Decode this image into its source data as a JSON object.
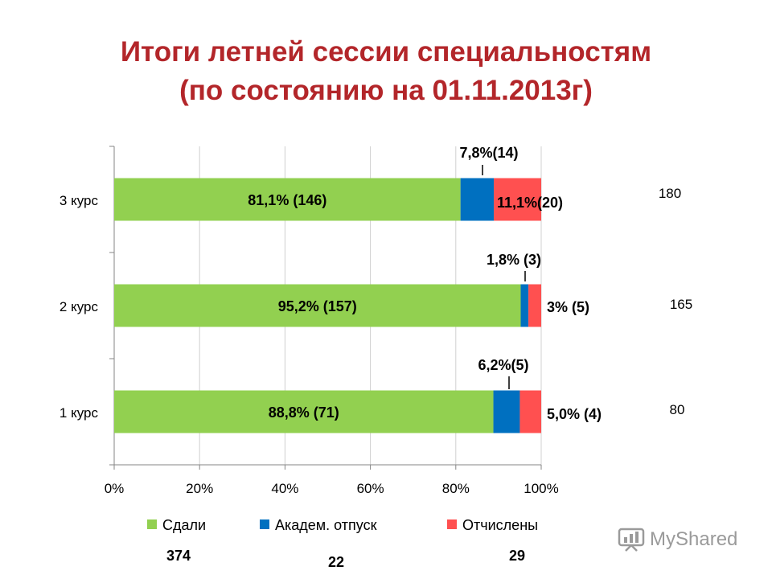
{
  "title": {
    "line1": "Итоги летней сессии специальностям",
    "line2": "(по состоянию на 01.11.2013г)"
  },
  "colors": {
    "passed": "#92d050",
    "academic_leave": "#0070c0",
    "expelled": "#ff5050",
    "title": "#b3262a"
  },
  "chart_data": {
    "type": "bar",
    "orientation": "horizontal",
    "stacked": "percent",
    "categories": [
      "3 курс",
      "2 курс",
      "1 курс"
    ],
    "series": [
      {
        "name": "Сдали",
        "values": [
          81.1,
          95.2,
          88.8
        ],
        "labels": [
          "81,1% (146)",
          "95,2% (157)",
          "88,8% (71)"
        ]
      },
      {
        "name": "Академ. отпуск",
        "values": [
          7.8,
          1.8,
          6.2
        ],
        "labels": [
          "7,8%(14)",
          "1,8% (3)",
          "6,2%(5)"
        ]
      },
      {
        "name": "Отчислены",
        "values": [
          11.1,
          3.0,
          5.0
        ],
        "labels": [
          "11,1%(20)",
          "3% (5)",
          "5,0% (4)"
        ]
      }
    ],
    "category_totals": [
      "180",
      "165",
      "80"
    ],
    "series_totals": [
      "374",
      "22",
      "29"
    ],
    "xlim": [
      0,
      100
    ],
    "x_ticks": [
      "0%",
      "20%",
      "40%",
      "60%",
      "80%",
      "100%"
    ],
    "gridlines": true,
    "legend": "bottom"
  },
  "watermark": {
    "text": "MyShared"
  }
}
